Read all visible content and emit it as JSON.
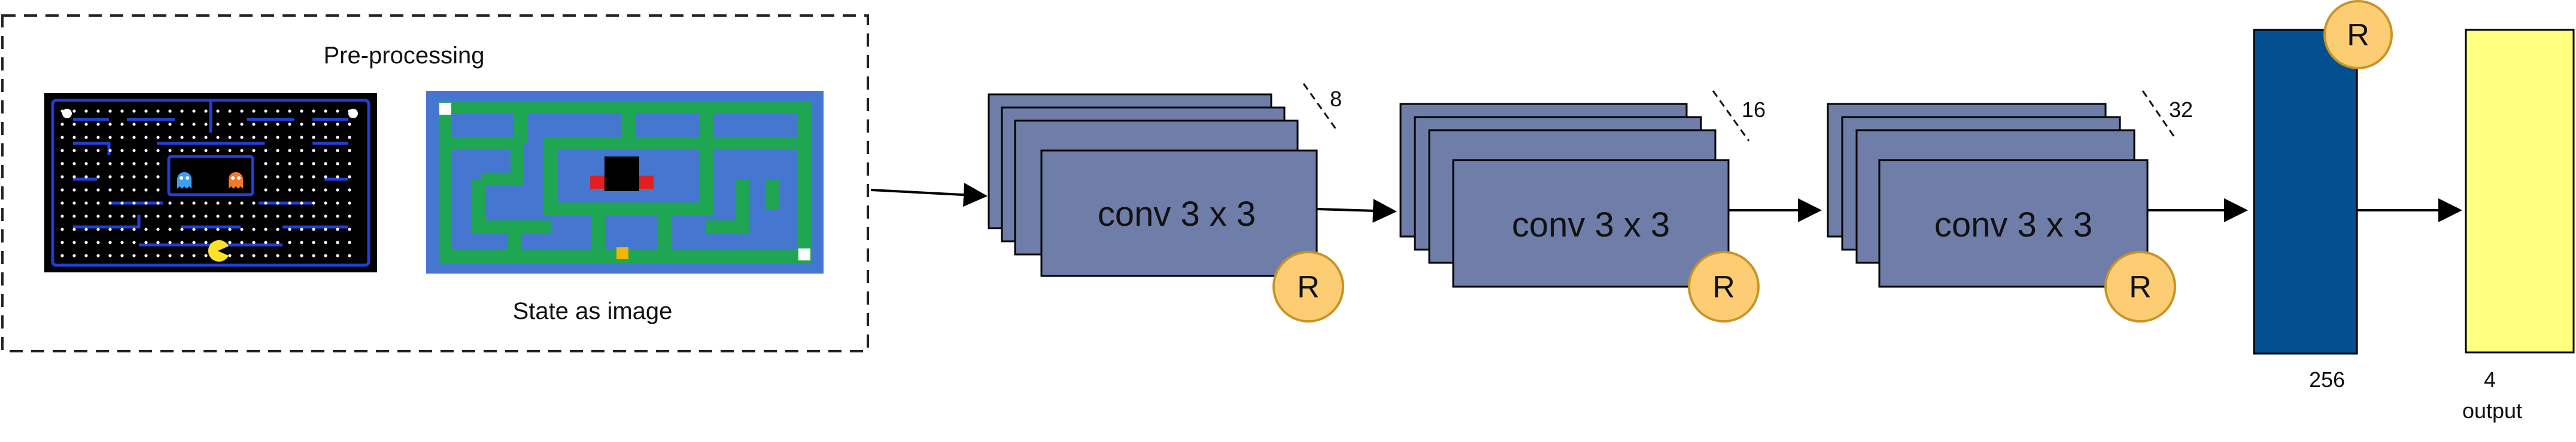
{
  "preprocessing": {
    "title": "Pre-processing",
    "state_label": "State as image"
  },
  "conv_blocks": [
    {
      "label": "conv 3 x 3",
      "filters": "8",
      "activation": "R"
    },
    {
      "label": "conv 3 x 3",
      "filters": "16",
      "activation": "R"
    },
    {
      "label": "conv 3 x 3",
      "filters": "32",
      "activation": "R"
    }
  ],
  "dense": {
    "units": "256",
    "activation": "R"
  },
  "output": {
    "units": "4",
    "label": "output"
  },
  "colors": {
    "conv_fill": "#6e7ea8",
    "dense_fill": "#02508f",
    "output_fill": "#ffff80",
    "relu_fill": "#fdcd74",
    "relu_stroke": "#c89428",
    "maze_bg": "#4577d0",
    "maze_wall": "#1fa653",
    "pacman_bg": "#000000",
    "pacman_wall": "#1f3fd8"
  }
}
